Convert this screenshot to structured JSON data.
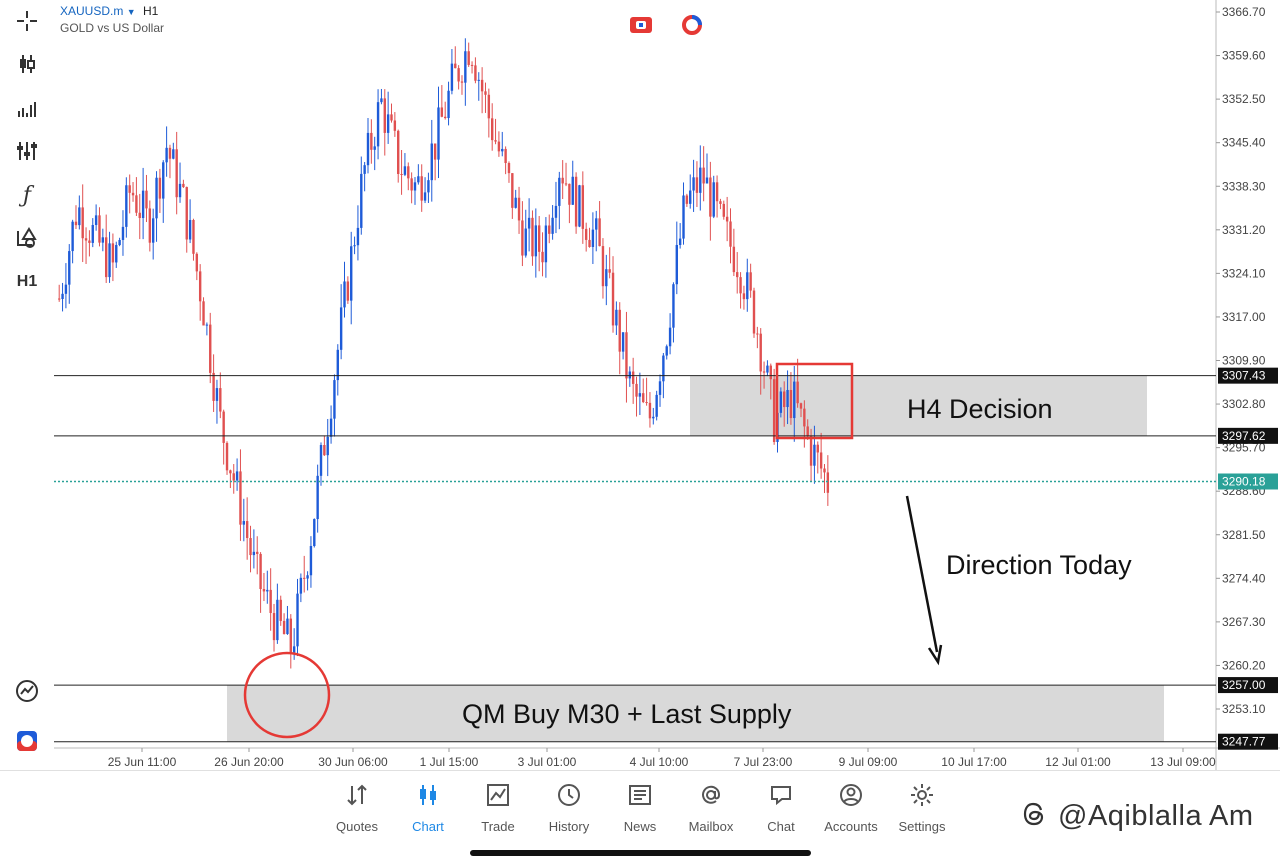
{
  "header": {
    "symbol": "XAUUSD.m",
    "dropdown_icon": "caret-down-icon",
    "timeframe": "H1",
    "description": "GOLD vs US Dollar"
  },
  "left_toolbar": {
    "items": [
      {
        "name": "crosshair-icon"
      },
      {
        "name": "candlestick-icon"
      },
      {
        "name": "chart-type-icon"
      },
      {
        "name": "indicators-icon"
      },
      {
        "name": "function-icon"
      },
      {
        "name": "objects-icon"
      },
      {
        "name": "timeframe",
        "label": "H1"
      }
    ],
    "bottom_items": [
      {
        "name": "trading-signals-icon"
      },
      {
        "name": "broker-logo-icon"
      }
    ]
  },
  "price_axis": {
    "ticks": [
      "3366.70",
      "3359.60",
      "3352.50",
      "3345.40",
      "3338.30",
      "3331.20",
      "3324.10",
      "3317.00",
      "3309.90",
      "3302.80",
      "3295.70",
      "3288.60",
      "3281.50",
      "3274.40",
      "3267.30",
      "3260.20",
      "3253.10"
    ],
    "levels": [
      {
        "label": "3307.43",
        "value": 3307.43,
        "color": "#111111"
      },
      {
        "label": "3297.62",
        "value": 3297.62,
        "color": "#111111"
      },
      {
        "label": "3290.18",
        "value": 3290.18,
        "color": "#2aa198"
      },
      {
        "label": "3257.00",
        "value": 3257.0,
        "color": "#111111"
      },
      {
        "label": "3247.77",
        "value": 3247.77,
        "color": "#111111"
      }
    ]
  },
  "time_axis": {
    "ticks": [
      "25 Jun 11:00",
      "26 Jun 20:00",
      "30 Jun 06:00",
      "1 Jul 15:00",
      "3 Jul 01:00",
      "4 Jul 10:00",
      "7 Jul 23:00",
      "9 Jul 09:00",
      "10 Jul 17:00",
      "12 Jul 01:00",
      "13 Jul 09:00"
    ]
  },
  "annotations": {
    "h4_zone_label": "H4 Decision",
    "qm_zone_label": "QM Buy M30 + Last Supply",
    "direction_label": "Direction Today"
  },
  "colors": {
    "bull": "#1e5bd8",
    "bear": "#e05050",
    "zone_fill": "#d9d9d9",
    "highlight": "#e53935",
    "active_tab": "#1e88e5"
  },
  "bottom_nav": {
    "items": [
      {
        "label": "Quotes",
        "icon": "quotes-icon",
        "active": false
      },
      {
        "label": "Chart",
        "icon": "chart-icon",
        "active": true
      },
      {
        "label": "Trade",
        "icon": "trade-icon",
        "active": false
      },
      {
        "label": "History",
        "icon": "history-icon",
        "active": false
      },
      {
        "label": "News",
        "icon": "news-icon",
        "active": false
      },
      {
        "label": "Mailbox",
        "icon": "mailbox-icon",
        "active": false
      },
      {
        "label": "Chat",
        "icon": "chat-icon",
        "active": false
      },
      {
        "label": "Accounts",
        "icon": "accounts-icon",
        "active": false
      },
      {
        "label": "Settings",
        "icon": "settings-icon",
        "active": false
      }
    ]
  },
  "watermark": {
    "text": "@Aqiblalla Am"
  },
  "chart_data": {
    "type": "candlestick",
    "title": "XAUUSD.m H1",
    "y_range": [
      3244,
      3368
    ],
    "series": [
      {
        "name": "XAUUSD.m",
        "approx_close_path": [
          3320,
          3335,
          3330,
          3325,
          3338,
          3332,
          3345,
          3335,
          3320,
          3300,
          3288,
          3275,
          3268,
          3263,
          3280,
          3300,
          3320,
          3340,
          3352,
          3342,
          3338,
          3345,
          3355,
          3362,
          3350,
          3340,
          3330,
          3328,
          3342,
          3335,
          3330,
          3318,
          3305,
          3300,
          3315,
          3335,
          3340,
          3332,
          3326,
          3316,
          3300,
          3304,
          3296,
          3290
        ]
      }
    ]
  }
}
